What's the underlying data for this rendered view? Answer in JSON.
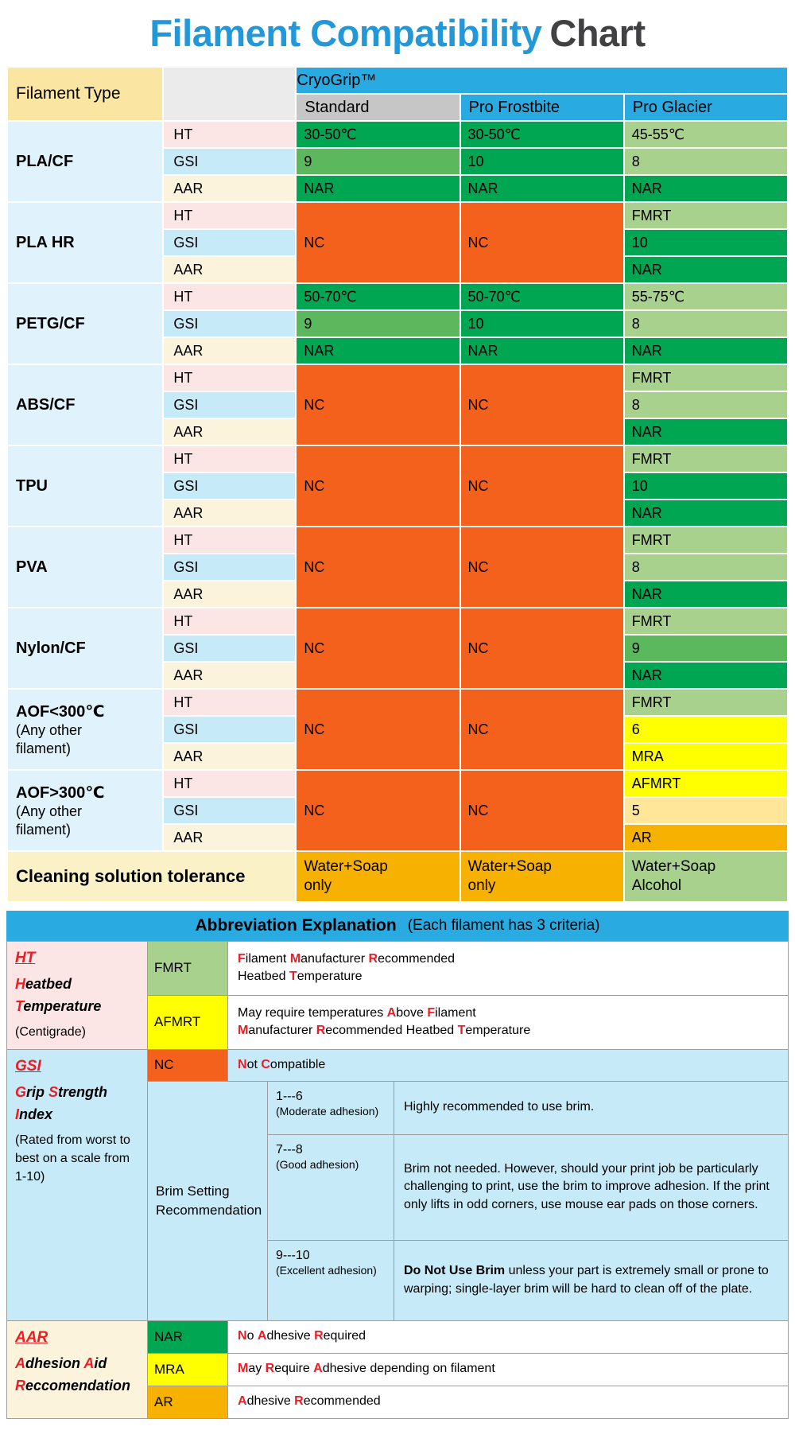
{
  "title": {
    "main": "Filament Compatibility",
    "secondary": "Chart"
  },
  "colors": {
    "ui": {
      "title_blue": "#2298D8",
      "title_gray": "#414042",
      "header_blue": "#29ABE2",
      "corner_yellow": "#FBE5A2",
      "standard_gray": "#C6C6C6",
      "criteria_head_gray": "#EBEBEB",
      "name_bg": "#E0F3FC",
      "ht_bg": "#FCE5E5",
      "gsi_bg": "#C7EAF8",
      "aar_bg": "#FCF3DC",
      "clean_label_bg": "#FBF1C7",
      "red_letter": "#ED1C24",
      "grid_line": "#9E9E9E"
    },
    "cells": {
      "green": "#00A651",
      "midgreen": "#5CB85C",
      "lightgreen": "#A9D18E",
      "orange": "#F4611D",
      "yellow": "#FFFF00",
      "cream": "#FFE699",
      "amber": "#F7B100"
    }
  },
  "chart_data": {
    "type": "table",
    "title": "Filament Compatibility Chart",
    "corner_label": "Filament Type",
    "group_header": "CryoGrip™",
    "columns": [
      "Standard",
      "Pro Frostbite",
      "Pro Glacier"
    ],
    "criteria": [
      "HT",
      "GSI",
      "AAR"
    ],
    "filaments": [
      {
        "name": "PLA/CF",
        "columns": [
          {
            "merged": false,
            "values": [
              {
                "text": "30-50℃",
                "color": "green"
              },
              {
                "text": "9",
                "color": "midgreen"
              },
              {
                "text": "NAR",
                "color": "green"
              }
            ]
          },
          {
            "merged": false,
            "values": [
              {
                "text": "30-50℃",
                "color": "green"
              },
              {
                "text": "10",
                "color": "green"
              },
              {
                "text": "NAR",
                "color": "green"
              }
            ]
          },
          {
            "merged": false,
            "values": [
              {
                "text": "45-55℃",
                "color": "lightgreen"
              },
              {
                "text": "8",
                "color": "lightgreen"
              },
              {
                "text": "NAR",
                "color": "green"
              }
            ]
          }
        ]
      },
      {
        "name": "PLA HR",
        "columns": [
          {
            "merged": true,
            "text": "NC",
            "color": "orange"
          },
          {
            "merged": true,
            "text": "NC",
            "color": "orange"
          },
          {
            "merged": false,
            "values": [
              {
                "text": "FMRT",
                "color": "lightgreen"
              },
              {
                "text": "10",
                "color": "green"
              },
              {
                "text": "NAR",
                "color": "green"
              }
            ]
          }
        ]
      },
      {
        "name": "PETG/CF",
        "columns": [
          {
            "merged": false,
            "values": [
              {
                "text": "50-70℃",
                "color": "green"
              },
              {
                "text": "9",
                "color": "midgreen"
              },
              {
                "text": "NAR",
                "color": "green"
              }
            ]
          },
          {
            "merged": false,
            "values": [
              {
                "text": "50-70℃",
                "color": "green"
              },
              {
                "text": "10",
                "color": "green"
              },
              {
                "text": "NAR",
                "color": "green"
              }
            ]
          },
          {
            "merged": false,
            "values": [
              {
                "text": "55-75℃",
                "color": "lightgreen"
              },
              {
                "text": "8",
                "color": "lightgreen"
              },
              {
                "text": "NAR",
                "color": "green"
              }
            ]
          }
        ]
      },
      {
        "name": "ABS/CF",
        "columns": [
          {
            "merged": true,
            "text": "NC",
            "color": "orange"
          },
          {
            "merged": true,
            "text": "NC",
            "color": "orange"
          },
          {
            "merged": false,
            "values": [
              {
                "text": "FMRT",
                "color": "lightgreen"
              },
              {
                "text": "8",
                "color": "lightgreen"
              },
              {
                "text": "NAR",
                "color": "green"
              }
            ]
          }
        ]
      },
      {
        "name": "TPU",
        "columns": [
          {
            "merged": true,
            "text": "NC",
            "color": "orange"
          },
          {
            "merged": true,
            "text": "NC",
            "color": "orange"
          },
          {
            "merged": false,
            "values": [
              {
                "text": "FMRT",
                "color": "lightgreen"
              },
              {
                "text": "10",
                "color": "green"
              },
              {
                "text": "NAR",
                "color": "green"
              }
            ]
          }
        ]
      },
      {
        "name": "PVA",
        "columns": [
          {
            "merged": true,
            "text": "NC",
            "color": "orange"
          },
          {
            "merged": true,
            "text": "NC",
            "color": "orange"
          },
          {
            "merged": false,
            "values": [
              {
                "text": "FMRT",
                "color": "lightgreen"
              },
              {
                "text": "8",
                "color": "lightgreen"
              },
              {
                "text": "NAR",
                "color": "green"
              }
            ]
          }
        ]
      },
      {
        "name": "Nylon/CF",
        "columns": [
          {
            "merged": true,
            "text": "NC",
            "color": "orange"
          },
          {
            "merged": true,
            "text": "NC",
            "color": "orange"
          },
          {
            "merged": false,
            "values": [
              {
                "text": "FMRT",
                "color": "lightgreen"
              },
              {
                "text": "9",
                "color": "midgreen"
              },
              {
                "text": "NAR",
                "color": "green"
              }
            ]
          }
        ]
      },
      {
        "name": "AOF<300℃",
        "subname": "(Any other\nfilament)",
        "columns": [
          {
            "merged": true,
            "text": "NC",
            "color": "orange"
          },
          {
            "merged": true,
            "text": "NC",
            "color": "orange"
          },
          {
            "merged": false,
            "values": [
              {
                "text": "FMRT",
                "color": "lightgreen"
              },
              {
                "text": "6",
                "color": "yellow"
              },
              {
                "text": "MRA",
                "color": "yellow"
              }
            ]
          }
        ]
      },
      {
        "name": "AOF>300℃",
        "subname": "(Any other\nfilament)",
        "columns": [
          {
            "merged": true,
            "text": "NC",
            "color": "orange"
          },
          {
            "merged": true,
            "text": "NC",
            "color": "orange"
          },
          {
            "merged": false,
            "values": [
              {
                "text": "AFMRT",
                "color": "yellow"
              },
              {
                "text": "5",
                "color": "cream"
              },
              {
                "text": "AR",
                "color": "amber"
              }
            ]
          }
        ]
      }
    ],
    "cleaning": {
      "label": "Cleaning solution tolerance",
      "values": [
        {
          "text": "Water+Soap\nonly",
          "color": "amber"
        },
        {
          "text": "Water+Soap\nonly",
          "color": "amber"
        },
        {
          "text": "Water+Soap\nAlcohol",
          "color": "lightgreen"
        }
      ]
    }
  },
  "legend": {
    "header_bold": "Abbreviation Explanation",
    "header_note": "(Each filament has 3 criteria)",
    "ht": {
      "abbr": "HT",
      "lines": [
        "[H]eatbed",
        "[T]emperature"
      ],
      "note": "(Centigrade)",
      "rows": [
        {
          "chip": "FMRT",
          "color": "lightgreen",
          "desc": "[F]ilament [M]anufacturer [R]ecommended\nHeatbed [T]emperature"
        },
        {
          "chip": "AFMRT",
          "color": "yellow",
          "desc": "May require temperatures [A]bove [F]ilament\n[M]anufacturer [R]ecommended Heatbed [T]emperature"
        }
      ]
    },
    "gsi": {
      "abbr": "GSI",
      "lines": [
        "[G]rip [S]trength [I]ndex"
      ],
      "note": "(Rated from worst to best on a scale from 1-10)",
      "nc": {
        "chip": "NC",
        "color": "orange",
        "desc": "[N]ot [C]ompatible"
      },
      "brim_label": "Brim Setting Recommendation",
      "brim_rows": [
        {
          "range": "1---6",
          "note": "(Moderate adhesion)",
          "desc": "Highly recommended to use brim."
        },
        {
          "range": "7---8",
          "note": "(Good adhesion)",
          "desc": "Brim not needed. However, should your print job be particularly challenging to print, use the brim to improve adhesion. If the print only lifts in odd corners, use mouse ear pads on those corners."
        },
        {
          "range": "9---10",
          "note": "(Excellent adhesion)",
          "desc": "**Do Not Use Brim** unless your part is extremely small or prone to warping; single-layer brim will be hard to clean off of the plate."
        }
      ]
    },
    "aar": {
      "abbr": "AAR",
      "lines": [
        "[A]dhesion [A]id",
        "[R]eccomendation"
      ],
      "rows": [
        {
          "chip": "NAR",
          "color": "green",
          "desc": "[N]o [A]dhesive [R]equired"
        },
        {
          "chip": "MRA",
          "color": "yellow",
          "desc": "[M]ay [R]equire [A]dhesive depending on filament"
        },
        {
          "chip": "AR",
          "color": "amber",
          "desc": "[A]dhesive [R]ecommended"
        }
      ]
    }
  }
}
